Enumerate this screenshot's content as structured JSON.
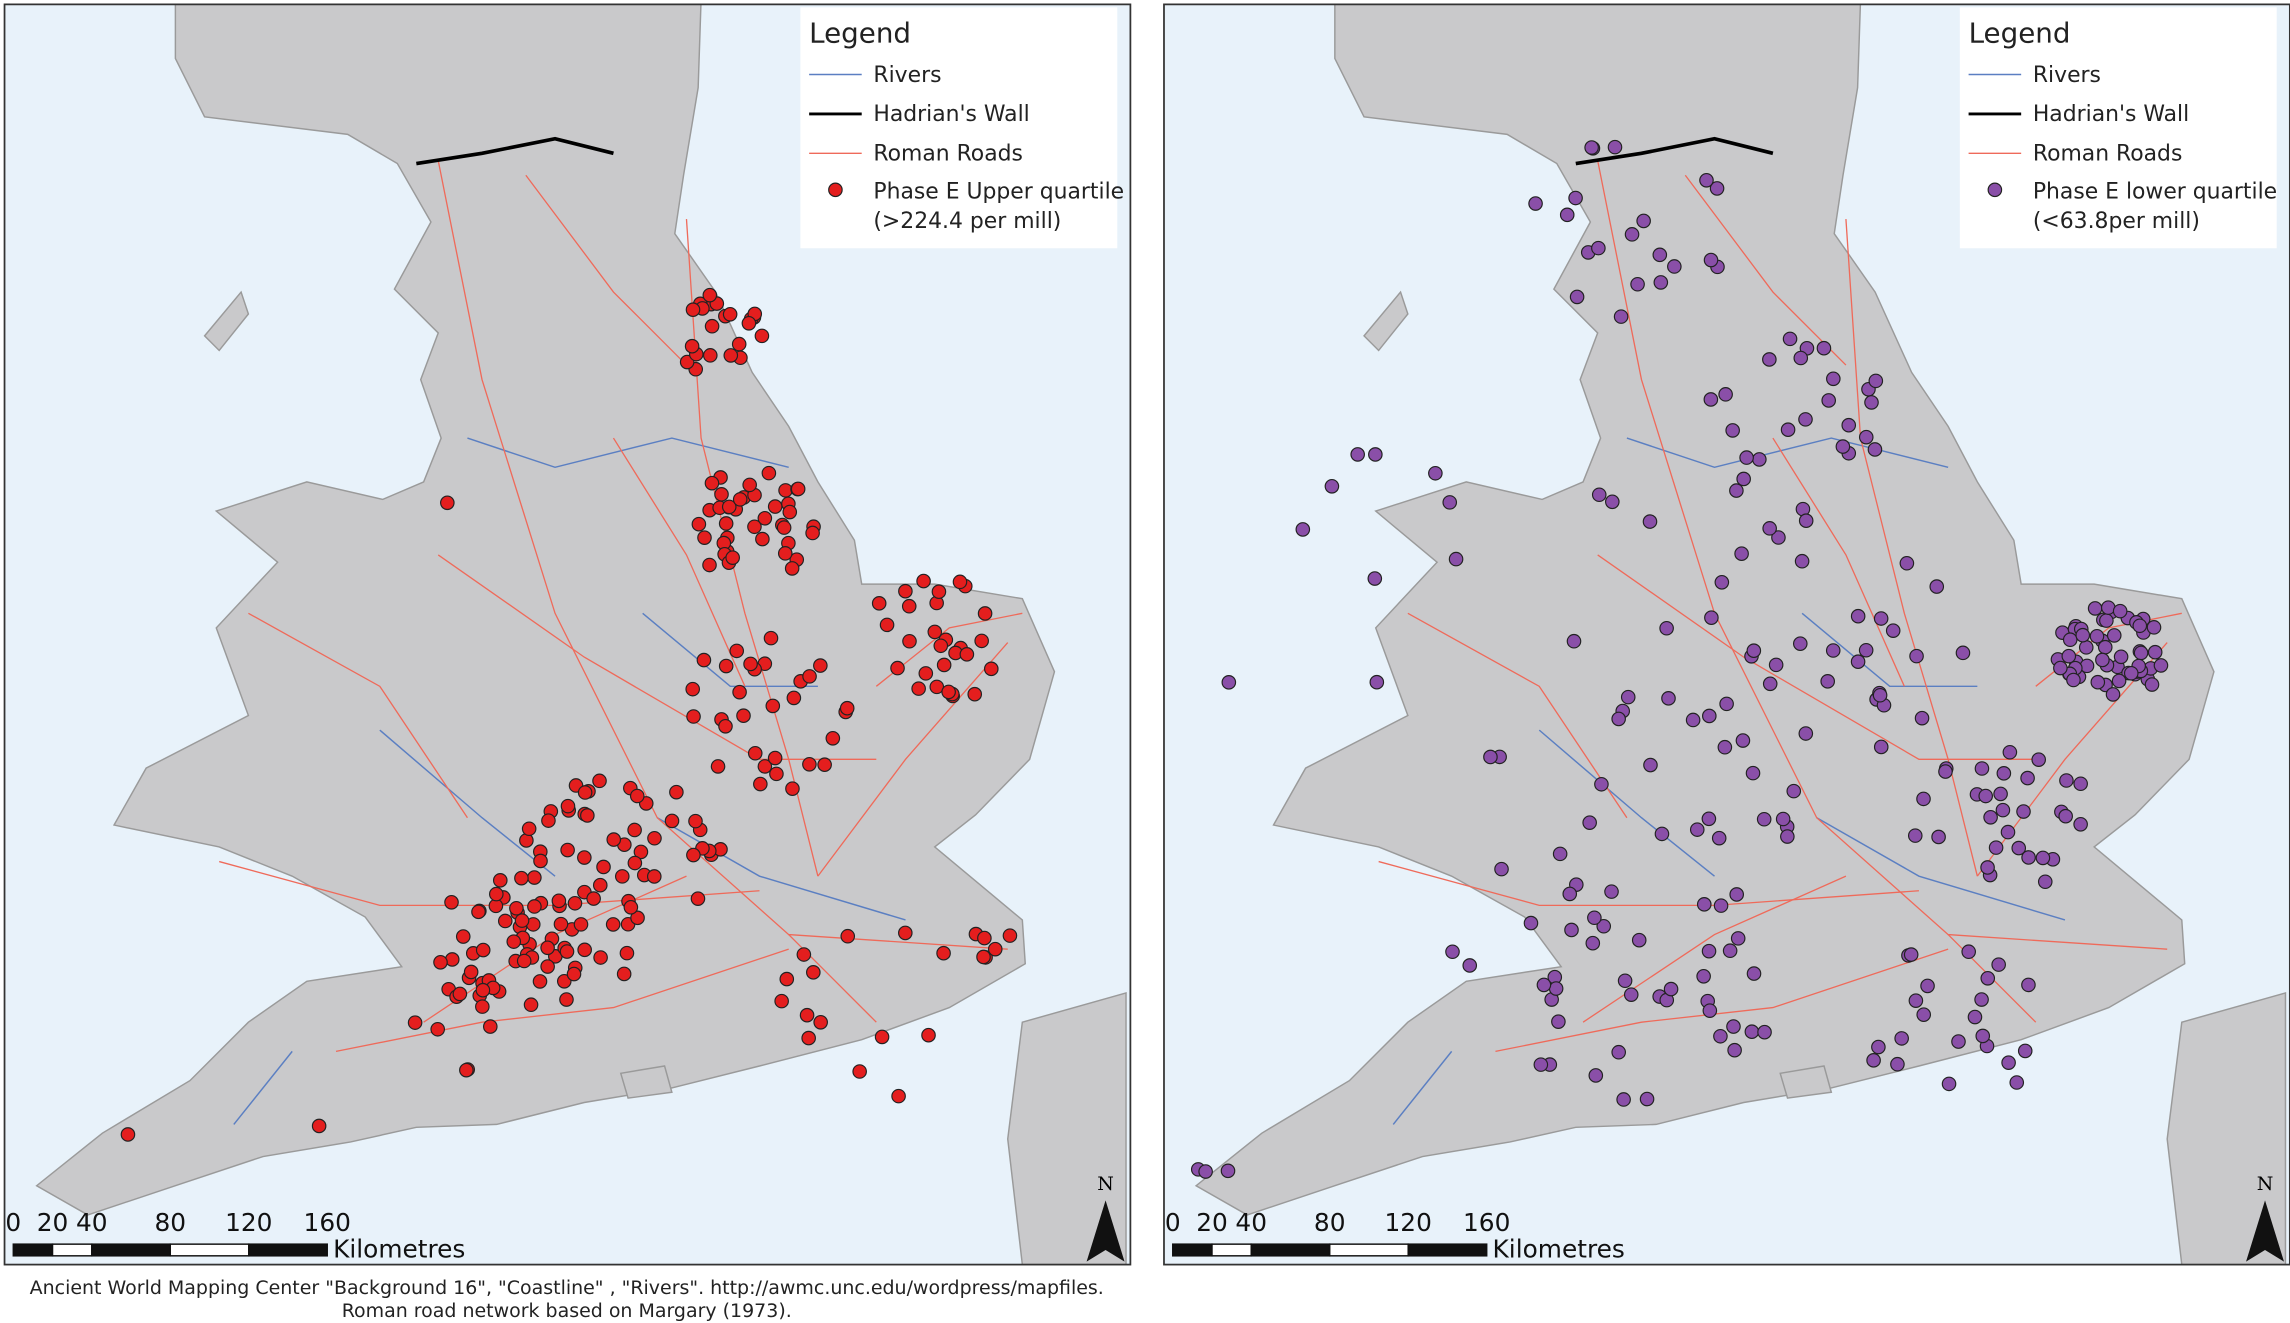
{
  "maps": [
    {
      "legend": {
        "title": "Legend",
        "items": [
          "Rivers",
          "Hadrian's Wall",
          "Roman Roads"
        ],
        "points": [
          "Phase E Upper quartile",
          "(>224.4 per mill)"
        ]
      },
      "scale": {
        "ticks": [
          0,
          20,
          40,
          80,
          120,
          160
        ],
        "unit": "Kilometres"
      },
      "north": "N"
    },
    {
      "legend": {
        "title": "Legend",
        "items": [
          "Rivers",
          "Hadrian's Wall",
          "Roman Roads"
        ],
        "points": [
          "Phase E lower quartile",
          "(<63.8per mill)"
        ]
      },
      "scale": {
        "ticks": [
          0,
          20,
          40,
          80,
          120,
          160
        ],
        "unit": "Kilometres"
      },
      "north": "N"
    }
  ],
  "caption": [
    "Ancient World Mapping Center \"Background 16\", \"Coastline\" , \"Rivers\". http://awmc.unc.edu/wordpress/mapfiles.",
    "Roman road network based on Margary (1973)."
  ]
}
